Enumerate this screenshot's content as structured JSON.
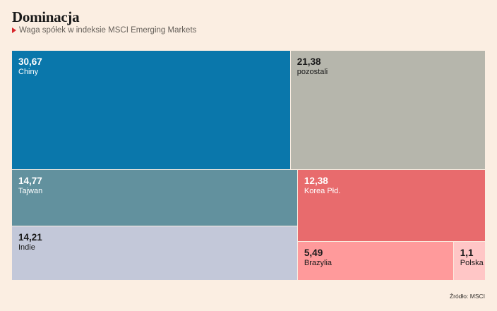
{
  "header": {
    "title": "Dominacja",
    "subtitle": "Waga spółek w indeksie MSCI Emerging Markets"
  },
  "footer": {
    "source": "Źródło: MSCI"
  },
  "chart_data": {
    "type": "treemap",
    "title": "Dominacja",
    "subtitle": "Waga spółek w indeksie MSCI Emerging Markets",
    "items": [
      {
        "label": "Chiny",
        "value_text": "30,67",
        "value": 30.67,
        "color": "#0a77ab",
        "text": "light"
      },
      {
        "label": "pozostali",
        "value_text": "21,38",
        "value": 21.38,
        "color": "#b6b6ac",
        "text": "dark"
      },
      {
        "label": "Tajwan",
        "value_text": "14,77",
        "value": 14.77,
        "color": "#62919e",
        "text": "light"
      },
      {
        "label": "Indie",
        "value_text": "14,21",
        "value": 14.21,
        "color": "#c3c8d9",
        "text": "dark"
      },
      {
        "label": "Korea Płd.",
        "value_text": "12,38",
        "value": 12.38,
        "color": "#e86b6d",
        "text": "light"
      },
      {
        "label": "Brazylia",
        "value_text": "5,49",
        "value": 5.49,
        "color": "#ff9a9b",
        "text": "dark"
      },
      {
        "label": "Polska",
        "value_text": "1,1",
        "value": 1.1,
        "color": "#ffc6c6",
        "text": "dark"
      }
    ]
  }
}
